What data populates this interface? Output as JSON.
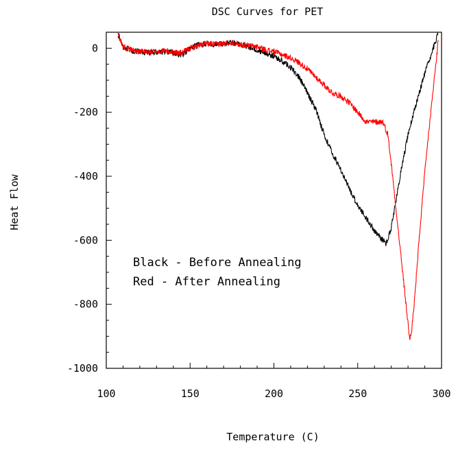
{
  "chart_data": {
    "type": "line",
    "title": "DSC Curves for PET",
    "xlabel": "Temperature (C)",
    "ylabel": "Heat Flow",
    "xlim": [
      100,
      300
    ],
    "ylim": [
      -1000,
      50
    ],
    "x_ticks": [
      100,
      150,
      200,
      250,
      300
    ],
    "y_ticks": [
      0,
      -200,
      -400,
      -600,
      -800,
      -1000
    ],
    "x_tick_labels": [
      "100",
      "150",
      "200",
      "250",
      "300"
    ],
    "y_tick_labels": [
      "0",
      "-200",
      "-400",
      "-600",
      "-800",
      "-1000"
    ],
    "grid": false,
    "annotations": [
      "Black - Before Annealing",
      "Red - After Annealing"
    ],
    "series": [
      {
        "color": "#000000",
        "x": [
          107,
          110,
          115,
          120,
          125,
          130,
          135,
          140,
          145,
          150,
          155,
          160,
          165,
          170,
          175,
          180,
          185,
          190,
          195,
          200,
          205,
          210,
          215,
          220,
          225,
          230,
          235,
          240,
          245,
          250,
          255,
          260,
          265,
          267,
          270,
          273,
          276,
          280,
          285,
          290,
          295,
          298
        ],
        "y": [
          45,
          5,
          -8,
          -12,
          -14,
          -12,
          -10,
          -15,
          -22,
          0,
          10,
          15,
          12,
          14,
          18,
          12,
          5,
          -5,
          -15,
          -25,
          -40,
          -60,
          -90,
          -140,
          -190,
          -270,
          -330,
          -380,
          -440,
          -490,
          -530,
          -570,
          -600,
          -610,
          -560,
          -470,
          -380,
          -270,
          -170,
          -80,
          0,
          45
        ]
      },
      {
        "color": "#ff0000",
        "x": [
          107,
          110,
          115,
          120,
          125,
          130,
          135,
          140,
          145,
          150,
          155,
          160,
          165,
          170,
          175,
          180,
          185,
          190,
          195,
          200,
          205,
          210,
          215,
          220,
          225,
          230,
          235,
          240,
          245,
          250,
          255,
          260,
          265,
          268,
          270,
          272,
          274,
          276,
          278,
          280,
          281,
          282,
          284,
          286,
          288,
          290,
          292,
          294,
          296,
          298
        ],
        "y": [
          45,
          5,
          -5,
          -10,
          -12,
          -10,
          -8,
          -12,
          -15,
          0,
          8,
          15,
          12,
          15,
          18,
          12,
          8,
          5,
          -5,
          -10,
          -20,
          -30,
          -45,
          -65,
          -90,
          -115,
          -140,
          -150,
          -170,
          -200,
          -230,
          -230,
          -230,
          -270,
          -360,
          -460,
          -560,
          -660,
          -760,
          -860,
          -910,
          -890,
          -780,
          -640,
          -510,
          -390,
          -280,
          -180,
          -80,
          20
        ]
      }
    ]
  }
}
